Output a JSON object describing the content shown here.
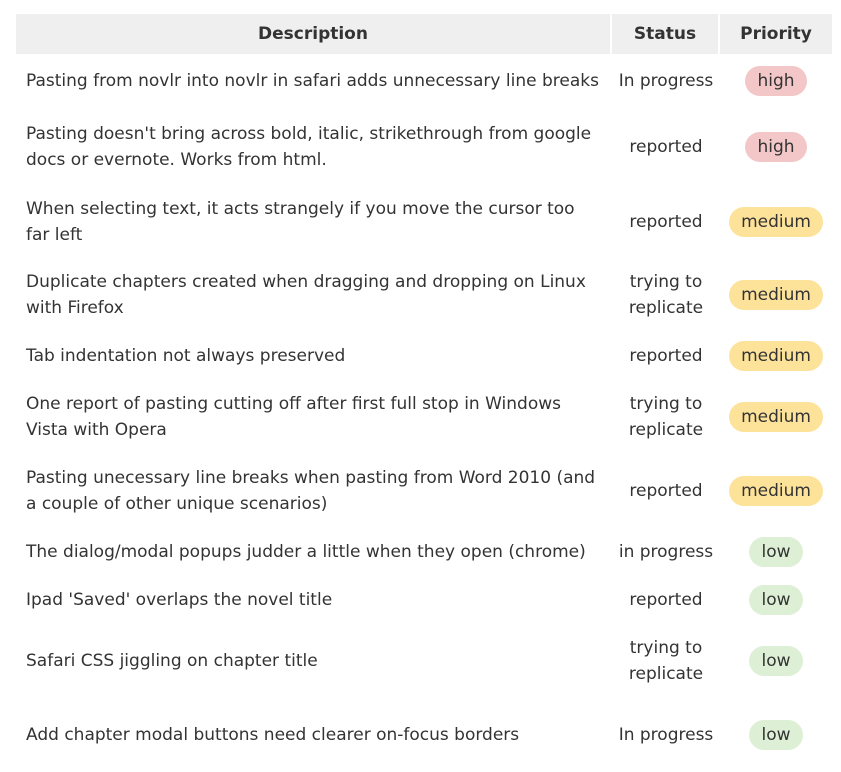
{
  "header": {
    "description": "Description",
    "status": "Status",
    "priority": "Priority"
  },
  "colors": {
    "high": "#f3c7c7",
    "medium": "#fde29a",
    "low": "#ddf0d5",
    "header_bg": "#efefef"
  },
  "rows": [
    {
      "description": "Pasting from novlr into novlr in safari adds unnecessary line breaks",
      "status": "In progress",
      "priority": "high"
    },
    {
      "description": "Pasting doesn't bring across bold, italic, strikethrough from google docs or evernote. Works from html.",
      "status": "reported",
      "priority": "high"
    },
    {
      "description": "When selecting text, it acts strangely if you move the cursor too far left",
      "status": "reported",
      "priority": "medium"
    },
    {
      "description": "Duplicate chapters created when dragging and dropping on Linux with Firefox",
      "status": "trying to replicate",
      "priority": "medium"
    },
    {
      "description": "Tab indentation not always preserved",
      "status": "reported",
      "priority": "medium"
    },
    {
      "description": "One report of pasting cutting off after first full stop in Windows Vista with Opera",
      "status": "trying to replicate",
      "priority": "medium"
    },
    {
      "description": "Pasting unecessary line breaks when pasting from Word 2010 (and a couple of other unique scenarios)",
      "status": "reported",
      "priority": "medium"
    },
    {
      "description": "The dialog/modal popups judder a little when they open (chrome)",
      "status": "in progress",
      "priority": "low"
    },
    {
      "description": "Ipad 'Saved' overlaps the novel title",
      "status": "reported",
      "priority": "low"
    },
    {
      "description": "Safari CSS jiggling on chapter title",
      "status": "trying to replicate",
      "priority": "low"
    },
    {
      "description": "Add chapter modal buttons need clearer on-focus borders",
      "status": "In progress",
      "priority": "low"
    }
  ]
}
